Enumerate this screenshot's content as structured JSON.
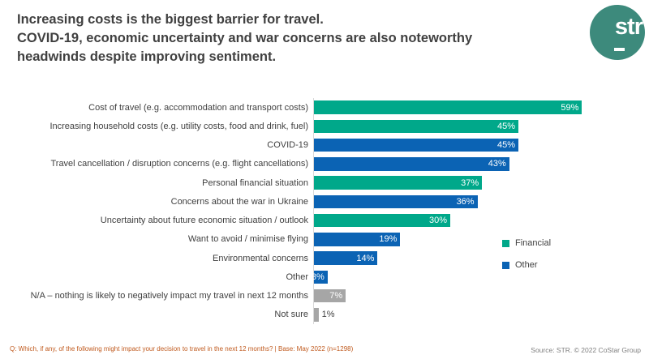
{
  "title": {
    "lines": [
      "Increasing costs is the biggest barrier for travel.",
      "COVID-19, economic uncertainty and war concerns are also noteworthy",
      "headwinds despite improving sentiment."
    ]
  },
  "logo": {
    "text": "str"
  },
  "colors": {
    "financial": "#00A88A",
    "other": "#0B63B4",
    "na": "#A6A6A6",
    "title_text": "#404040",
    "label_text": "#404040",
    "footnote": "#C05A1E",
    "source": "#7F7F7F",
    "logo_bg": "#3D8A7C",
    "axis_line": "#D9D9D9"
  },
  "chart_data": {
    "type": "bar",
    "orientation": "horizontal",
    "title": "",
    "xlabel": "",
    "ylabel": "",
    "value_suffix": "%",
    "xlim": [
      0,
      63
    ],
    "grid": false,
    "legend_position": "middle-right",
    "categories": [
      "Cost of travel (e.g. accommodation and transport costs)",
      "Increasing household costs (e.g. utility costs, food and drink, fuel)",
      "COVID-19",
      "Travel cancellation / disruption concerns (e.g. flight cancellations)",
      "Personal financial situation",
      "Concerns about the war in Ukraine",
      "Uncertainty about future economic situation / outlook",
      "Want to avoid / minimise flying",
      "Environmental concerns",
      "Other",
      "N/A – nothing is likely to negatively impact my travel in next 12 months",
      "Not sure"
    ],
    "values": [
      59,
      45,
      45,
      43,
      37,
      36,
      30,
      19,
      14,
      3,
      7,
      1
    ],
    "data_labels": [
      "59%",
      "45%",
      "45%",
      "43%",
      "37%",
      "36%",
      "30%",
      "19%",
      "14%",
      "3%",
      "7%",
      "1%"
    ],
    "groups": [
      "financial",
      "financial",
      "other",
      "other",
      "financial",
      "other",
      "financial",
      "other",
      "other",
      "other",
      "na",
      "na"
    ],
    "legend": [
      {
        "label": "Financial",
        "color_key": "financial"
      },
      {
        "label": "Other",
        "color_key": "other"
      }
    ]
  },
  "footer": {
    "note": "Q: Which, if any, of the following might impact your decision to travel in the next 12 months? | Base: May 2022 (n=1298)",
    "source": "Source: STR. © 2022 CoStar Group"
  }
}
